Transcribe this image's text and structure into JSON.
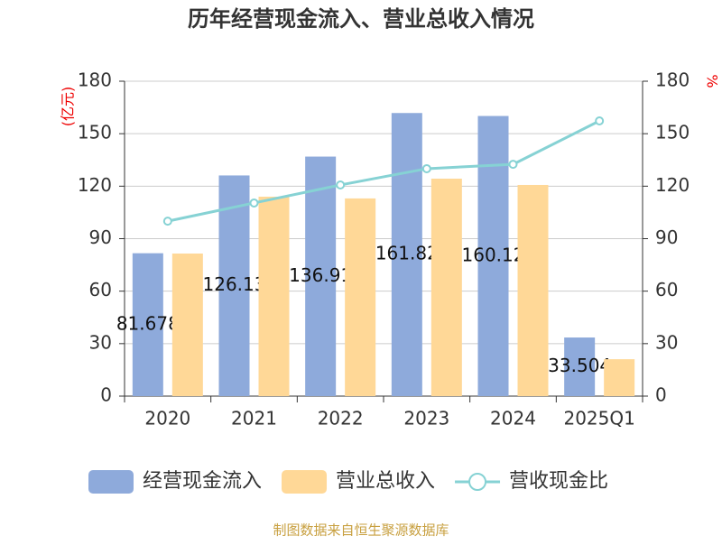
{
  "chart_data": {
    "type": "bar_line",
    "title": "历年经营现金流入、营业总收入情况",
    "categories": [
      "2020",
      "2021",
      "2022",
      "2023",
      "2024",
      "2025Q1"
    ],
    "series": [
      {
        "name": "经营现金流入",
        "type": "bar",
        "color": "#8eaadb",
        "values": [
          81.678,
          126.13,
          136.91,
          161.82,
          160.12,
          33.504
        ],
        "data_labels": true
      },
      {
        "name": "营业总收入",
        "type": "bar",
        "color": "#ffd897",
        "values": [
          81.5,
          114,
          113,
          124.3,
          120.7,
          21.1
        ]
      },
      {
        "name": "营收现金比",
        "type": "line",
        "axis": "y2",
        "color": "#86d2d4",
        "values": [
          100,
          110.4,
          120.7,
          130,
          132.5,
          157.3
        ]
      }
    ],
    "ylabel": "(亿元)",
    "y2label": "%",
    "ylim": [
      0,
      180
    ],
    "yticks": [
      0,
      30,
      60,
      90,
      120,
      150,
      180
    ],
    "y2lim": [
      0,
      180
    ],
    "y2ticks": [
      0,
      30,
      60,
      90,
      120,
      150,
      180
    ],
    "grid": true,
    "legend": "bottom",
    "source": "制图数据来自恒生聚源数据库"
  }
}
